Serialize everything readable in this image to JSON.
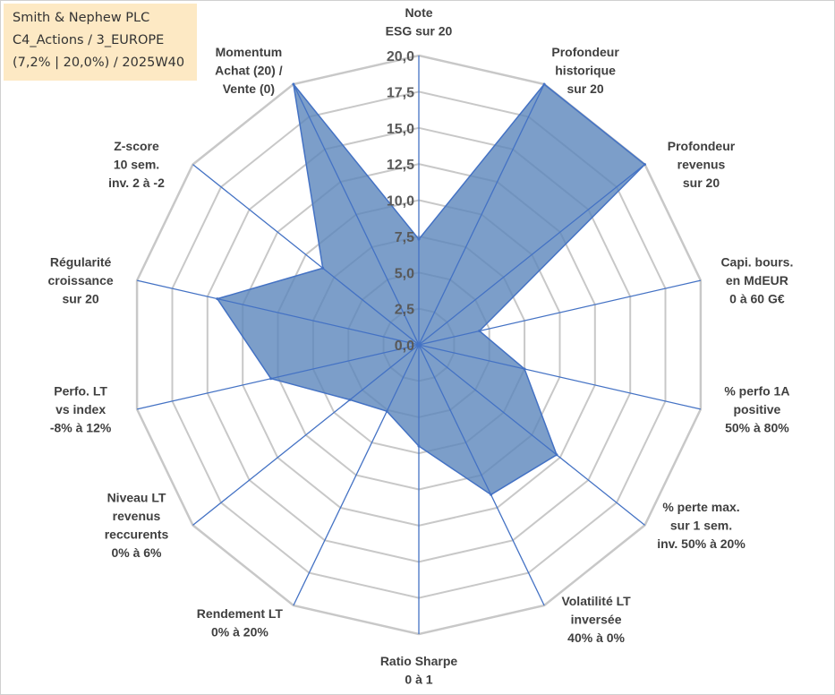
{
  "info": {
    "line1": "Smith & Nephew PLC",
    "line2": "C4_Actions / 3_EUROPE",
    "line3": "(7,2% | 20,0%) / 2025W40"
  },
  "colors": {
    "fill": "#5b86bb",
    "stroke": "#4472c4",
    "grid": "#c8c8c8",
    "spoke": "#4472c4",
    "info_bg": "#fde9c4"
  },
  "chart_data": {
    "type": "radar",
    "title": "",
    "rmin": 0,
    "rmax": 20,
    "ticks": [
      "0,0",
      "2,5",
      "5,0",
      "7,5",
      "10,0",
      "12,5",
      "15,0",
      "17,5",
      "20,0"
    ],
    "axes": [
      {
        "label": [
          "Note",
          "ESG sur 20"
        ],
        "value": 7.3
      },
      {
        "label": [
          "Profondeur",
          "historique",
          "sur 20"
        ],
        "value": 20
      },
      {
        "label": [
          "Profondeur",
          "revenus",
          "sur 20"
        ],
        "value": 20
      },
      {
        "label": [
          "Capi. bours.",
          "en MdEUR",
          "0 à 60 G€"
        ],
        "value": 4.3
      },
      {
        "label": [
          "% perfo 1A",
          "positive",
          "50% à 80%"
        ],
        "value": 7.5
      },
      {
        "label": [
          "% perte max.",
          "sur 1 sem.",
          "inv. 50% à 20%"
        ],
        "value": 12.2
      },
      {
        "label": [
          "Volatilité LT",
          "inversée",
          "40% à 0%"
        ],
        "value": 11.5
      },
      {
        "label": [
          "Ratio Sharpe",
          "0 à 1"
        ],
        "value": 7.0
      },
      {
        "label": [
          "Rendement LT",
          "0% à 20%"
        ],
        "value": 5.1
      },
      {
        "label": [
          "Niveau LT",
          "revenus",
          "reccurents",
          "0% à 6%"
        ],
        "value": 6.1
      },
      {
        "label": [
          "Perfo. LT",
          "vs index",
          "-8% à 12%"
        ],
        "value": 10.5
      },
      {
        "label": [
          "Régularité",
          "croissance",
          "sur 20"
        ],
        "value": 14.3
      },
      {
        "label": [
          "Z-score",
          "10 sem.",
          "inv. 2 à -2"
        ],
        "value": 8.5
      },
      {
        "label": [
          "Momentum",
          "Achat (20) /",
          "Vente (0)"
        ],
        "value": 20
      }
    ]
  }
}
